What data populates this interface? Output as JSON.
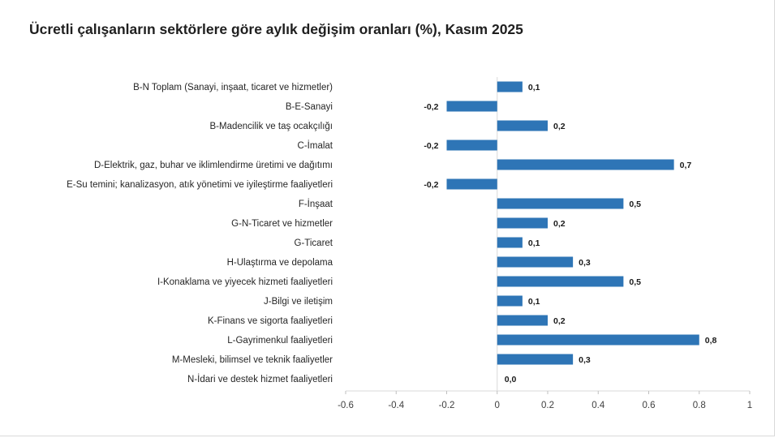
{
  "chart_data": {
    "type": "bar",
    "orientation": "horizontal",
    "title": "Ücretli çalışanların sektörlere göre aylık değişim oranları (%), Kasım 2025",
    "xlabel": "",
    "ylabel": "",
    "xlim": [
      -0.6,
      1
    ],
    "ticks": [
      -0.6,
      -0.4,
      -0.2,
      0,
      0.2,
      0.4,
      0.6,
      0.8,
      1
    ],
    "tick_labels": [
      "-0.6",
      "-0.4",
      "-0.2",
      "0",
      "0.2",
      "0.4",
      "0.6",
      "0.8",
      "1"
    ],
    "bar_color": "#2e75b6",
    "categories": [
      "B-N Toplam (Sanayi, inşaat, ticaret ve hizmetler)",
      "B-E-Sanayi",
      "B-Madencilik ve taş ocakçılığı",
      "C-İmalat",
      "D-Elektrik, gaz, buhar ve iklimlendirme üretimi ve dağıtımı",
      "E-Su temini; kanalizasyon, atık yönetimi ve iyileştirme faaliyetleri",
      "F-İnşaat",
      "G-N-Ticaret ve hizmetler",
      "G-Ticaret",
      "H-Ulaştırma ve depolama",
      "I-Konaklama ve yiyecek hizmeti faaliyetleri",
      "J-Bilgi ve iletişim",
      "K-Finans ve sigorta faaliyetleri",
      "L-Gayrimenkul faaliyetleri",
      "M-Mesleki, bilimsel ve teknik faaliyetler",
      "N-İdari ve destek hizmet faaliyetleri"
    ],
    "values": [
      0.1,
      -0.2,
      0.2,
      -0.2,
      0.7,
      -0.2,
      0.5,
      0.2,
      0.1,
      0.3,
      0.5,
      0.1,
      0.2,
      0.8,
      0.3,
      0.0
    ],
    "value_labels": [
      "0,1",
      "-0,2",
      "0,2",
      "-0,2",
      "0,7",
      "-0,2",
      "0,5",
      "0,2",
      "0,1",
      "0,3",
      "0,5",
      "0,1",
      "0,2",
      "0,8",
      "0,3",
      "0,0"
    ]
  }
}
